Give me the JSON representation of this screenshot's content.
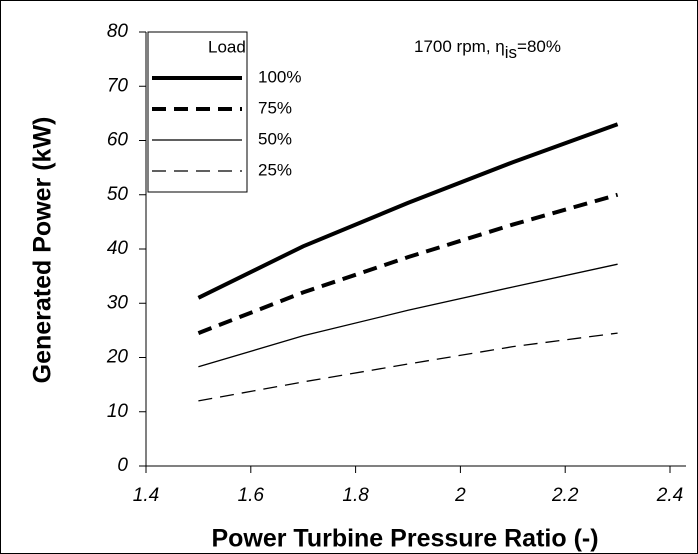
{
  "chart_data": {
    "type": "line",
    "x_label": "Power Turbine Pressure Ratio (-)",
    "y_label": "Generated Power (kW)",
    "annotation": [
      "1700 rpm, η",
      "is",
      "=80%"
    ],
    "legend_title": "Load",
    "legend": "upper left",
    "x": [
      1.5,
      1.7,
      1.9,
      2.1,
      2.3
    ],
    "series": [
      {
        "name": "100%",
        "color": "#000000",
        "width": 4,
        "dash": "none",
        "values": [
          31,
          40.5,
          48.5,
          56,
          63
        ]
      },
      {
        "name": "75%",
        "color": "#000000",
        "width": 4,
        "dash": "14 8",
        "values": [
          24.5,
          32,
          38.5,
          44.5,
          50
        ]
      },
      {
        "name": "50%",
        "color": "#000000",
        "width": 1.3,
        "dash": "none",
        "values": [
          18.3,
          24,
          28.7,
          33,
          37.2
        ]
      },
      {
        "name": "25%",
        "color": "#000000",
        "width": 1.3,
        "dash": "14 8",
        "values": [
          12,
          15.5,
          18.8,
          22,
          24.5
        ]
      }
    ],
    "xlim": [
      1.4,
      2.4
    ],
    "xticks": [
      1.4,
      1.6,
      1.8,
      2,
      2.2,
      2.4
    ],
    "ylim": [
      0,
      80
    ],
    "yticks": [
      0,
      10,
      20,
      30,
      40,
      50,
      60,
      70,
      80
    ],
    "grid": false
  }
}
